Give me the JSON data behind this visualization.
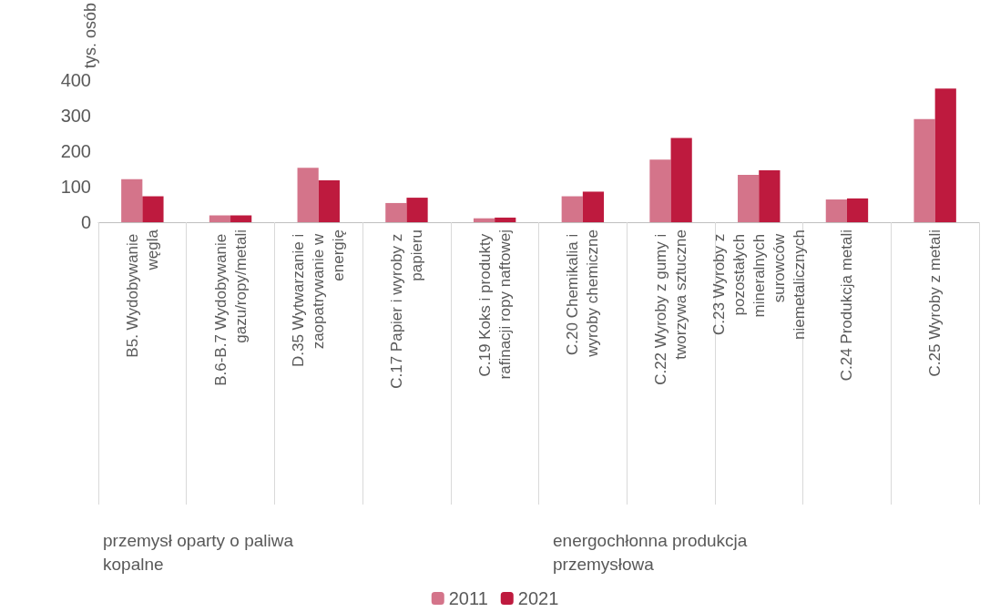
{
  "chart_data": {
    "type": "bar",
    "ylabel": "tys. osób",
    "categories": [
      "B5. Wydobywanie węgla",
      "B.6-B.7 Wydobywanie gazu/ropy/metali",
      "D.35 Wytwarzanie i zaopatrywanie w energię",
      "C.17 Papier i wyroby z papieru",
      "C.19 Koks i produkty rafinacji ropy naftowej",
      "C.20 Chemikalia i wyroby chemiczne",
      "C.22 Wyroby z gumy i tworzywa sztuczne",
      "C.23 Wyroby z pozostałych mineralnych surowców niemetalicznych",
      "C.24 Produkcja metali",
      "C.25 Wyroby z metali"
    ],
    "series": [
      {
        "name": "2011",
        "color": "#d4748a",
        "values": [
          121,
          19,
          153,
          54,
          11,
          73,
          176,
          133,
          64,
          290
        ]
      },
      {
        "name": "2021",
        "color": "#be1a3e",
        "values": [
          73,
          19,
          118,
          69,
          13,
          86,
          237,
          146,
          67,
          376
        ]
      }
    ],
    "ylim": [
      0,
      400
    ],
    "yticks": [
      0,
      100,
      200,
      300,
      400
    ],
    "grid": false,
    "legend": "bottom",
    "annotations": [
      "przemysł oparty o paliwa kopalne",
      "energochłonna produkcja przemysłowa"
    ]
  }
}
